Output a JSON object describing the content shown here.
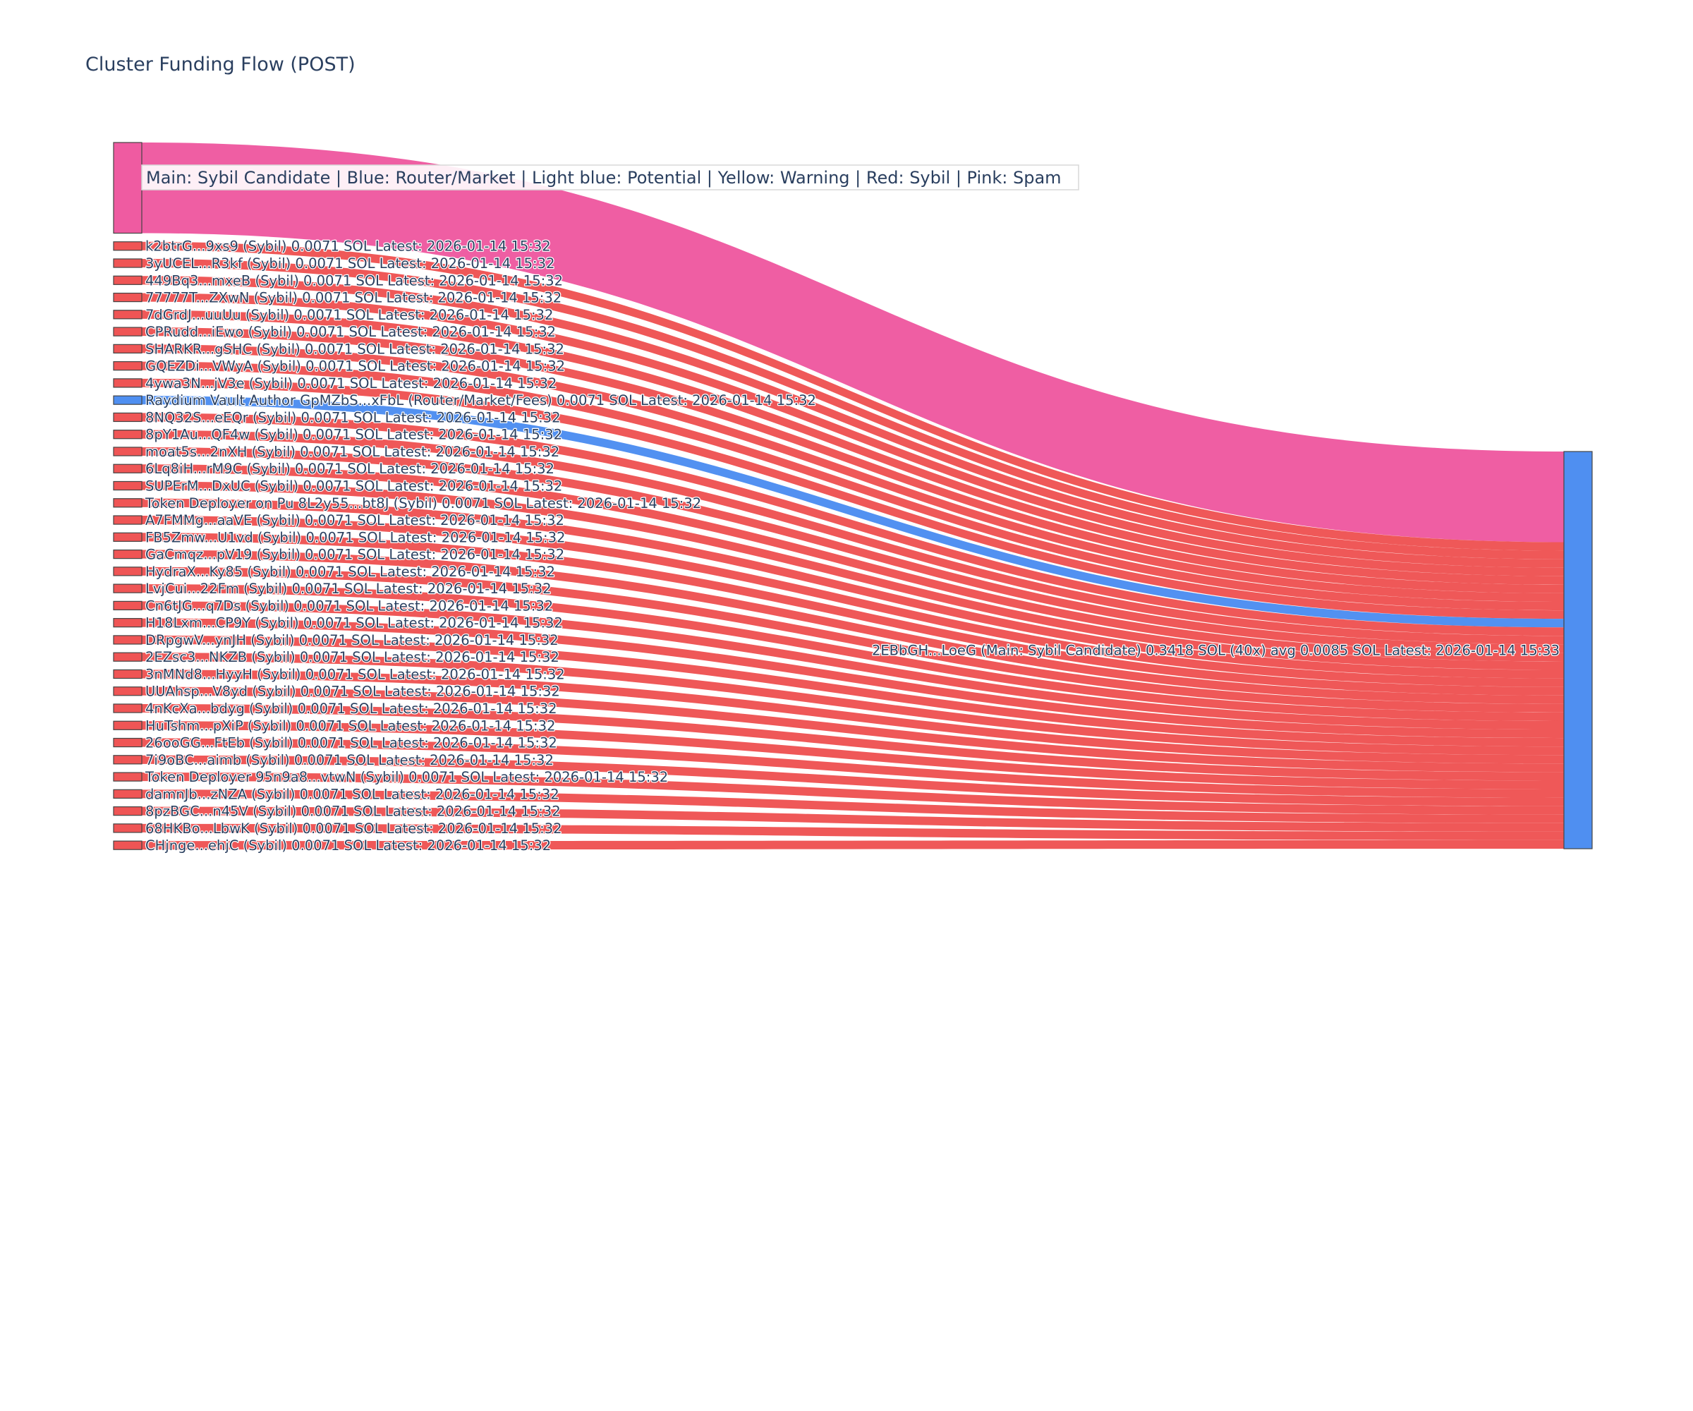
{
  "chart_data": {
    "type": "sankey",
    "title": "Cluster Funding Flow (POST)",
    "legend_text": "Main: Sybil Candidate  |  Blue: Router/Market | Light blue: Potential | Yellow: Warning | Red: Sybil | Pink: Spam",
    "colors": {
      "Spam": "#ef5ba1",
      "Sybil": "#ef5555",
      "Router": "#4f8ff1",
      "Main": "#4f8ff1"
    },
    "target": {
      "label": "2EBbGH...LoeG (Main: Sybil Candidate) 0.3418 SOL (40x) avg 0.0085 SOL Latest: 2026-01-14 15:33",
      "type": "Main"
    },
    "sources": [
      {
        "label": "",
        "type": "Spam",
        "value": 0.0756
      },
      {
        "label": "k2btrG...9xs9 (Sybil) 0.0071 SOL Latest: 2026-01-14 15:32",
        "type": "Sybil",
        "value": 0.0071
      },
      {
        "label": "3yUCEL...R3kf (Sybil) 0.0071 SOL Latest: 2026-01-14 15:32",
        "type": "Sybil",
        "value": 0.0071
      },
      {
        "label": "449Bq3...mxeB (Sybil) 0.0071 SOL Latest: 2026-01-14 15:32",
        "type": "Sybil",
        "value": 0.0071
      },
      {
        "label": "77777T...ZXwN (Sybil) 0.0071 SOL Latest: 2026-01-14 15:32",
        "type": "Sybil",
        "value": 0.0071
      },
      {
        "label": "7dGrdJ...uuUu (Sybil) 0.0071 SOL Latest: 2026-01-14 15:32",
        "type": "Sybil",
        "value": 0.0071
      },
      {
        "label": "CPRudd...iEwo (Sybil) 0.0071 SOL Latest: 2026-01-14 15:32",
        "type": "Sybil",
        "value": 0.0071
      },
      {
        "label": "SHARKR...gSHC (Sybil) 0.0071 SOL Latest: 2026-01-14 15:32",
        "type": "Sybil",
        "value": 0.0071
      },
      {
        "label": "GQEZDi...VWyA (Sybil) 0.0071 SOL Latest: 2026-01-14 15:32",
        "type": "Sybil",
        "value": 0.0071
      },
      {
        "label": "4ywa3N...jV3e (Sybil) 0.0071 SOL Latest: 2026-01-14 15:32",
        "type": "Sybil",
        "value": 0.0071
      },
      {
        "label": "Raydium Vault Author GpMZbS...xFbL (Router/Market/Fees) 0.0071 SOL Latest: 2026-01-14 15:32",
        "type": "Router",
        "value": 0.0071
      },
      {
        "label": "8NQ32S...eEQr (Sybil) 0.0071 SOL Latest: 2026-01-14 15:32",
        "type": "Sybil",
        "value": 0.0071
      },
      {
        "label": "8pY1Au...QF4w (Sybil) 0.0071 SOL Latest: 2026-01-14 15:32",
        "type": "Sybil",
        "value": 0.0071
      },
      {
        "label": "moat5s...2nXH (Sybil) 0.0071 SOL Latest: 2026-01-14 15:32",
        "type": "Sybil",
        "value": 0.0071
      },
      {
        "label": "6Lq8iH...rM9C (Sybil) 0.0071 SOL Latest: 2026-01-14 15:32",
        "type": "Sybil",
        "value": 0.0071
      },
      {
        "label": "SUPErM...DxUC (Sybil) 0.0071 SOL Latest: 2026-01-14 15:32",
        "type": "Sybil",
        "value": 0.0071
      },
      {
        "label": "Token Deployer on Pu 8L2y55...bt8J (Sybil) 0.0071 SOL Latest: 2026-01-14 15:32",
        "type": "Sybil",
        "value": 0.0071
      },
      {
        "label": "A7FMMg...aaVE (Sybil) 0.0071 SOL Latest: 2026-01-14 15:32",
        "type": "Sybil",
        "value": 0.0071
      },
      {
        "label": "FB5Zmw...U1vd (Sybil) 0.0071 SOL Latest: 2026-01-14 15:32",
        "type": "Sybil",
        "value": 0.0071
      },
      {
        "label": "GaCmqz...pV19 (Sybil) 0.0071 SOL Latest: 2026-01-14 15:32",
        "type": "Sybil",
        "value": 0.0071
      },
      {
        "label": "HydraX...Ky85 (Sybil) 0.0071 SOL Latest: 2026-01-14 15:32",
        "type": "Sybil",
        "value": 0.0071
      },
      {
        "label": "LvjCui...22Fm (Sybil) 0.0071 SOL Latest: 2026-01-14 15:32",
        "type": "Sybil",
        "value": 0.0071
      },
      {
        "label": "Cn6tJG...q7Ds (Sybil) 0.0071 SOL Latest: 2026-01-14 15:32",
        "type": "Sybil",
        "value": 0.0071
      },
      {
        "label": "H18Lxm...CP9Y (Sybil) 0.0071 SOL Latest: 2026-01-14 15:32",
        "type": "Sybil",
        "value": 0.0071
      },
      {
        "label": "DRpgwV...ynJH (Sybil) 0.0071 SOL Latest: 2026-01-14 15:32",
        "type": "Sybil",
        "value": 0.0071
      },
      {
        "label": "2EZsc3...NKZB (Sybil) 0.0071 SOL Latest: 2026-01-14 15:32",
        "type": "Sybil",
        "value": 0.0071
      },
      {
        "label": "3nMNd8...HyyH (Sybil) 0.0071 SOL Latest: 2026-01-14 15:32",
        "type": "Sybil",
        "value": 0.0071
      },
      {
        "label": "UUAhsp...V8yd (Sybil) 0.0071 SOL Latest: 2026-01-14 15:32",
        "type": "Sybil",
        "value": 0.0071
      },
      {
        "label": "4nKcXa...bdyg (Sybil) 0.0071 SOL Latest: 2026-01-14 15:32",
        "type": "Sybil",
        "value": 0.0071
      },
      {
        "label": "HuTshm...pXiP (Sybil) 0.0071 SOL Latest: 2026-01-14 15:32",
        "type": "Sybil",
        "value": 0.0071
      },
      {
        "label": "26ooGG...FtEb (Sybil) 0.0071 SOL Latest: 2026-01-14 15:32",
        "type": "Sybil",
        "value": 0.0071
      },
      {
        "label": "7i9oBC...aimb (Sybil) 0.0071 SOL Latest: 2026-01-14 15:32",
        "type": "Sybil",
        "value": 0.0071
      },
      {
        "label": "Token Deployer 95n9a8...vtwN (Sybil) 0.0071 SOL Latest: 2026-01-14 15:32",
        "type": "Sybil",
        "value": 0.0071
      },
      {
        "label": "damnJb...zNZA (Sybil) 0.0071 SOL Latest: 2026-01-14 15:32",
        "type": "Sybil",
        "value": 0.0071
      },
      {
        "label": "8pzBGC...n45V (Sybil) 0.0071 SOL Latest: 2026-01-14 15:32",
        "type": "Sybil",
        "value": 0.0071
      },
      {
        "label": "68HKBo...LbwK (Sybil) 0.0071 SOL Latest: 2026-01-14 15:32",
        "type": "Sybil",
        "value": 0.0071
      },
      {
        "label": "CHjnge...ehjC (Sybil) 0.0071 SOL Latest: 2026-01-14 15:32",
        "type": "Sybil",
        "value": 0.0071
      }
    ]
  }
}
